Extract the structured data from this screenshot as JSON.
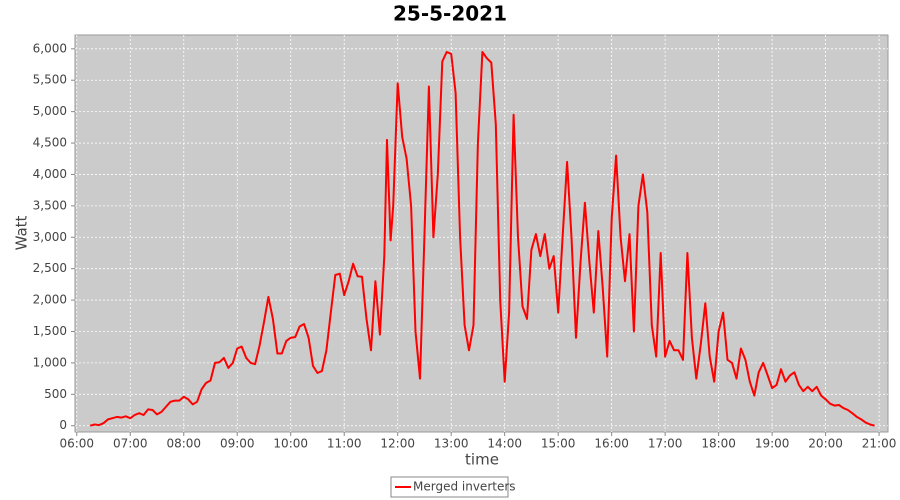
{
  "chart_data": {
    "type": "line",
    "title": "25-5-2021",
    "x_label": "time",
    "y_label": "Watt",
    "x": [
      "06:15",
      "06:20",
      "06:25",
      "06:30",
      "06:35",
      "06:40",
      "06:45",
      "06:50",
      "06:55",
      "07:00",
      "07:05",
      "07:10",
      "07:15",
      "07:20",
      "07:25",
      "07:30",
      "07:35",
      "07:40",
      "07:45",
      "07:50",
      "07:55",
      "08:00",
      "08:05",
      "08:10",
      "08:15",
      "08:20",
      "08:25",
      "08:30",
      "08:35",
      "08:40",
      "08:45",
      "08:50",
      "08:55",
      "09:00",
      "09:05",
      "09:10",
      "09:15",
      "09:20",
      "09:25",
      "09:30",
      "09:35",
      "09:40",
      "09:45",
      "09:50",
      "09:55",
      "10:00",
      "10:05",
      "10:10",
      "10:15",
      "10:20",
      "10:25",
      "10:30",
      "10:35",
      "10:40",
      "10:45",
      "10:50",
      "10:55",
      "11:00",
      "11:05",
      "11:10",
      "11:15",
      "11:20",
      "11:25",
      "11:30",
      "11:35",
      "11:40",
      "11:45",
      "11:48",
      "11:52",
      "11:55",
      "12:00",
      "12:05",
      "12:10",
      "12:15",
      "12:20",
      "12:25",
      "12:30",
      "12:35",
      "12:40",
      "12:45",
      "12:50",
      "12:55",
      "13:00",
      "13:05",
      "13:10",
      "13:15",
      "13:20",
      "13:25",
      "13:30",
      "13:35",
      "13:40",
      "13:45",
      "13:50",
      "13:55",
      "14:00",
      "14:05",
      "14:10",
      "14:15",
      "14:20",
      "14:25",
      "14:30",
      "14:35",
      "14:40",
      "14:45",
      "14:50",
      "14:55",
      "15:00",
      "15:05",
      "15:10",
      "15:15",
      "15:20",
      "15:25",
      "15:30",
      "15:35",
      "15:40",
      "15:45",
      "15:50",
      "15:55",
      "16:00",
      "16:05",
      "16:10",
      "16:15",
      "16:20",
      "16:25",
      "16:30",
      "16:35",
      "16:40",
      "16:45",
      "16:50",
      "16:55",
      "17:00",
      "17:05",
      "17:10",
      "17:15",
      "17:20",
      "17:25",
      "17:30",
      "17:35",
      "17:40",
      "17:45",
      "17:50",
      "17:55",
      "18:00",
      "18:05",
      "18:10",
      "18:15",
      "18:20",
      "18:25",
      "18:30",
      "18:35",
      "18:40",
      "18:45",
      "18:50",
      "18:55",
      "19:00",
      "19:05",
      "19:10",
      "19:15",
      "19:20",
      "19:25",
      "19:30",
      "19:35",
      "19:40",
      "19:45",
      "19:50",
      "19:55",
      "20:00",
      "20:05",
      "20:10",
      "20:15",
      "20:20",
      "20:25",
      "20:30",
      "20:35",
      "20:40",
      "20:45",
      "20:50",
      "20:55"
    ],
    "series": [
      {
        "name": "Merged inverters",
        "color": "#ff0000",
        "values": [
          0,
          20,
          10,
          40,
          100,
          120,
          140,
          130,
          150,
          120,
          170,
          200,
          170,
          260,
          250,
          180,
          220,
          300,
          380,
          400,
          400,
          460,
          420,
          340,
          380,
          580,
          680,
          720,
          1000,
          1010,
          1080,
          920,
          1000,
          1230,
          1260,
          1080,
          1000,
          980,
          1270,
          1650,
          2050,
          1700,
          1150,
          1150,
          1350,
          1400,
          1410,
          1580,
          1620,
          1400,
          950,
          840,
          870,
          1200,
          1800,
          2400,
          2420,
          2080,
          2300,
          2580,
          2380,
          2370,
          1700,
          1200,
          2300,
          1450,
          2700,
          4550,
          2950,
          3500,
          5450,
          4600,
          4250,
          3500,
          1500,
          750,
          3000,
          5400,
          3000,
          4000,
          5800,
          5950,
          5920,
          5300,
          3000,
          1600,
          1200,
          1600,
          4500,
          5950,
          5850,
          5780,
          4800,
          2000,
          700,
          1800,
          4950,
          3000,
          1900,
          1700,
          2800,
          3050,
          2700,
          3050,
          2500,
          2700,
          1800,
          3000,
          4200,
          3000,
          1400,
          2600,
          3550,
          2600,
          1800,
          3100,
          2200,
          1100,
          3300,
          4300,
          3000,
          2300,
          3050,
          1500,
          3500,
          4000,
          3400,
          1600,
          1100,
          2750,
          1100,
          1350,
          1200,
          1200,
          1050,
          2750,
          1400,
          750,
          1300,
          1950,
          1100,
          700,
          1500,
          1800,
          1050,
          1000,
          750,
          1230,
          1050,
          700,
          480,
          850,
          1000,
          800,
          600,
          650,
          900,
          700,
          800,
          850,
          650,
          550,
          620,
          550,
          620,
          480,
          420,
          350,
          320,
          330,
          280,
          250,
          200,
          140,
          100,
          50,
          20,
          0
        ]
      }
    ],
    "xlim": [
      "05:58",
      "21:10"
    ],
    "xticks": [
      "06:00",
      "07:00",
      "08:00",
      "09:00",
      "10:00",
      "11:00",
      "12:00",
      "13:00",
      "14:00",
      "15:00",
      "16:00",
      "17:00",
      "18:00",
      "19:00",
      "20:00",
      "21:00"
    ],
    "ylim": [
      -100,
      6220
    ],
    "yticks": [
      0,
      500,
      {
        "value": 1000,
        "label": "1,000"
      },
      {
        "value": 1500,
        "label": "1,500"
      },
      {
        "value": 2000,
        "label": "2,000"
      },
      {
        "value": 2500,
        "label": "2,500"
      },
      {
        "value": 3000,
        "label": "3,000"
      },
      {
        "value": 3500,
        "label": "3,500"
      },
      {
        "value": 4000,
        "label": "4,000"
      },
      {
        "value": 4500,
        "label": "4,500"
      },
      {
        "value": 5000,
        "label": "5,000"
      },
      {
        "value": 5500,
        "label": "5,500"
      },
      {
        "value": 6000,
        "label": "6,000"
      }
    ],
    "grid": true,
    "legend": "bottom"
  }
}
